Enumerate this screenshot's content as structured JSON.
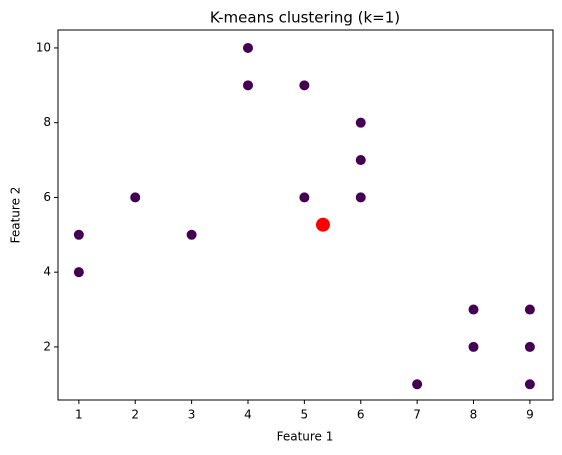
{
  "chart_data": {
    "type": "scatter",
    "title": "K-means clustering (k=1)",
    "x_label": "Feature 1",
    "y_label": "Feature 2",
    "series": [
      {
        "color": "#440154",
        "size": 5,
        "x": [
          1,
          1,
          2,
          3,
          4,
          4,
          5,
          5,
          6,
          6,
          6,
          8,
          8,
          7,
          9,
          9,
          9
        ],
        "values": [
          5,
          4,
          6,
          5,
          10,
          9,
          9,
          6,
          8,
          7,
          6,
          3,
          2,
          1,
          3,
          2,
          1
        ]
      },
      {
        "color": "#ff0000",
        "size": 7,
        "x": [
          5.33
        ],
        "values": [
          5.27
        ]
      }
    ],
    "xlim": [
      0.63,
      9.41
    ],
    "ylim": [
      0.58,
      10.48
    ],
    "xticks": [
      1,
      2,
      3,
      4,
      5,
      6,
      7,
      8,
      9
    ],
    "yticks": [
      2,
      4,
      6,
      8,
      10
    ]
  }
}
